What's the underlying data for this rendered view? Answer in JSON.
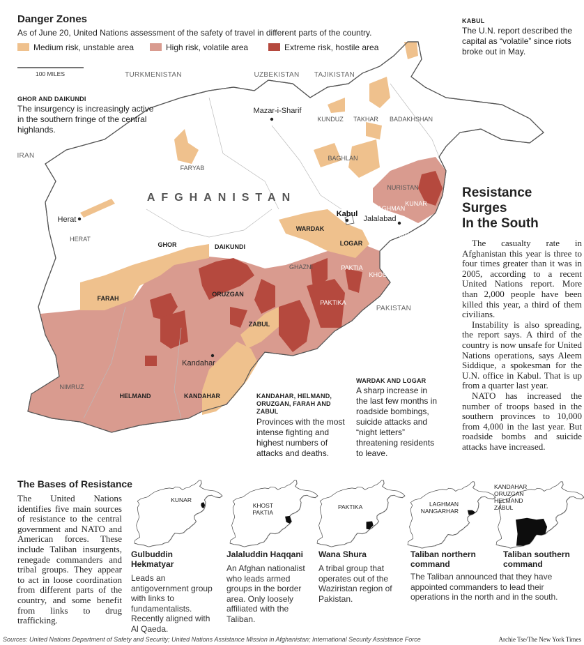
{
  "header": {
    "title": "Danger Zones",
    "subtitle": "As of June 20, United Nations assessment of the safety of travel in different parts of the country."
  },
  "legend": [
    {
      "label": "Medium risk, unstable area",
      "color": "#efc18d"
    },
    {
      "label": "High risk, volatile area",
      "color": "#d99b8f"
    },
    {
      "label": "Extreme risk, hostile area",
      "color": "#b5493e"
    }
  ],
  "scale_label": "100 MILES",
  "map_labels": [
    "TURKMENISTAN",
    "UZBEKISTAN",
    "TAJIKISTAN",
    "IRAN",
    "PAKISTAN",
    "AFGHANISTAN",
    "Mazar-i-Sharif",
    "KUNDUZ",
    "TAKHAR",
    "BADAKHSHAN",
    "FARYAB",
    "BAGHLAN",
    "NURISTAN",
    "KUNAR",
    "LAGHMAN",
    "Kabul",
    "Jalalabad",
    "NANGARHAR",
    "WARDAK",
    "LOGAR",
    "Herat",
    "HERAT",
    "GHOR",
    "DAIKUNDI",
    "GHAZNI",
    "PAKTIA",
    "KHOST",
    "PAKTIKA",
    "FARAH",
    "ORUZGAN",
    "ZABUL",
    "Kandahar",
    "NIMRUZ",
    "HELMAND",
    "KANDAHAR"
  ],
  "notes": {
    "kabul": {
      "heading": "KABUL",
      "text": "The U.N. report described the capital as “volatile” since riots broke out in May."
    },
    "ghor": {
      "heading": "GHOR AND DAIKUNDI",
      "text": "The insurgency is increasingly active in the southern fringe of the central highlands."
    },
    "south": {
      "heading": "KANDAHAR, HELMAND, ORUZGAN, FARAH AND ZABUL",
      "text": "Provinces with the most intense fighting and highest numbers of attacks and deaths."
    },
    "wardak": {
      "heading": "WARDAK AND LOGAR",
      "text": "A sharp increase in the last few months in roadside bombings, suicide attacks and “night letters” threatening residents to leave."
    }
  },
  "article": {
    "title_lines": [
      "Resistance",
      "Surges",
      "In the South"
    ],
    "paragraphs": [
      "The casualty rate in Afghanistan this year is three to four times greater than it was in 2005, according to a recent United Nations report. More than 2,000 people have been killed this year, a third of them civilians.",
      "Instability is also spreading, the report says. A third of the country is now unsafe for United Nations operations, says Aleem Siddique, a spokesman for the U.N. office in Kabul. That is up from a quarter last year.",
      "NATO has increased the number of troops based in the southern provinces to 10,000 from 4,000 in the last year. But roadside bombs and suicide attacks have increased."
    ]
  },
  "bases": {
    "title": "The Bases of Resistance",
    "text": "The United Nations identifies five main sources of resistance to the central government and NATO and American forces. These include Taliban insurgents, renegade commanders and tribal groups. They appear to act in loose coordination from different parts of the country, and some benefit from links to drug trafficking.",
    "groups": [
      {
        "map_labels": [
          "KUNAR"
        ],
        "name": "Gulbuddin Hekmatyar",
        "text": "Leads an antigovernment group with links to fundamentalists. Recently aligned with Al Qaeda."
      },
      {
        "map_labels": [
          "KHOST",
          "PAKTIA"
        ],
        "name": "Jalaluddin Haqqani",
        "text": "An Afghan nationalist who leads armed groups in the border area. Only loosely affiliated with the Taliban."
      },
      {
        "map_labels": [
          "PAKTIKA"
        ],
        "name": "Wana Shura",
        "text": "A tribal group that operates out of the Waziristan region of Pakistan."
      },
      {
        "map_labels": [
          "LAGHMAN",
          "NANGARHAR"
        ],
        "name": "Taliban northern command"
      },
      {
        "map_labels": [
          "KANDAHAR",
          "ORUZGAN",
          "HELMAND",
          "ZABUL"
        ],
        "name": "Taliban southern command"
      }
    ],
    "taliban_note": "The Taliban announced that they have appointed commanders to lead their operations in the north and in the south."
  },
  "footer": {
    "sources": "Sources: United Nations Department of Safety and Security; United Nations Assistance Mission in Afghanistan; International Security Assistance Force",
    "credit": "Archie Tse/The New York Times"
  }
}
